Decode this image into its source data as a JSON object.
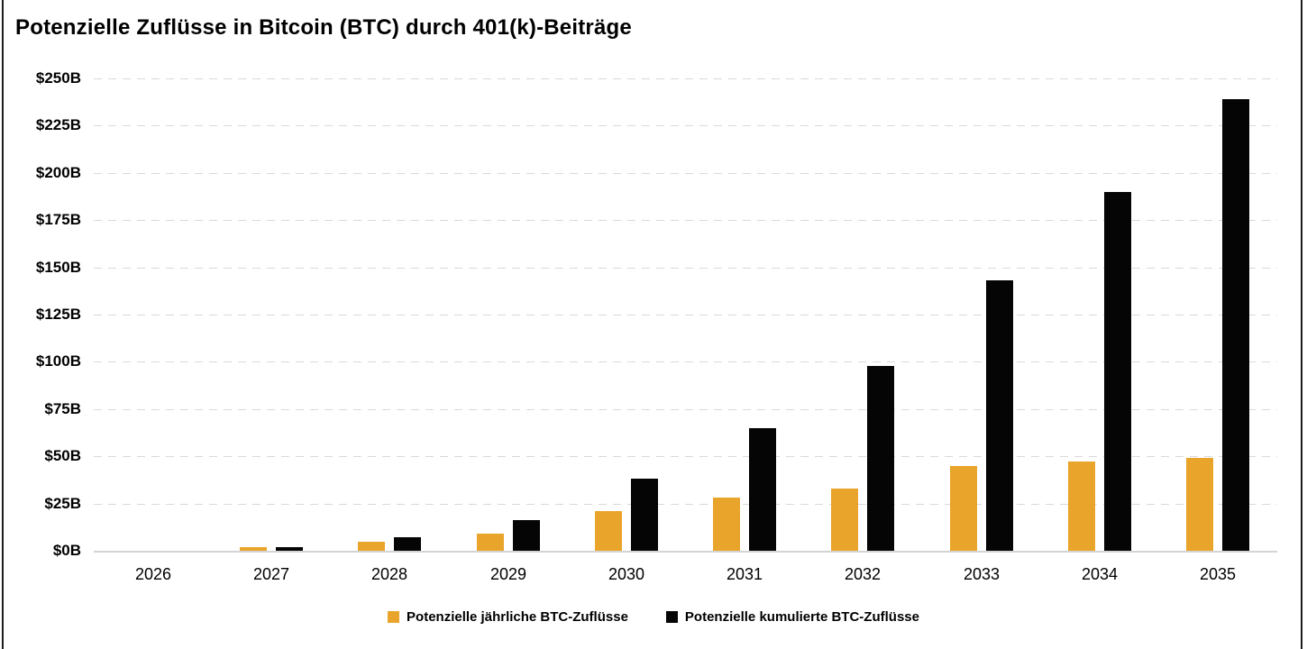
{
  "title": "Potenzielle Zuflüsse in Bitcoin (BTC) durch 401(k)-Beiträge",
  "chart_data": {
    "type": "bar",
    "title": "Potenzielle Zuflüsse in Bitcoin (BTC) durch 401(k)-Beiträge",
    "categories": [
      "2026",
      "2027",
      "2028",
      "2029",
      "2030",
      "2031",
      "2032",
      "2033",
      "2034",
      "2035"
    ],
    "series": [
      {
        "name": "Potenzielle jährliche BTC-Zuflüsse",
        "color": "#E9A52B",
        "values": [
          0,
          2,
          5,
          9,
          21,
          28,
          33,
          45,
          47,
          49
        ]
      },
      {
        "name": "Potenzielle kumulierte BTC-Zuflüsse",
        "color": "#050505",
        "values": [
          0,
          2,
          7,
          16,
          38,
          65,
          98,
          143,
          190,
          239
        ]
      }
    ],
    "y_axis": {
      "tick_labels": [
        "$0B",
        "$25B",
        "$50B",
        "$75B",
        "$100B",
        "$125B",
        "$150B",
        "$175B",
        "$200B",
        "$225B",
        "$250B"
      ],
      "tick_values": [
        0,
        25,
        50,
        75,
        100,
        125,
        150,
        175,
        200,
        225,
        250
      ],
      "min": 0,
      "max": 250
    },
    "xlabel": "",
    "ylabel": "",
    "grid": "dashed-horizontal",
    "legend_position": "bottom-center"
  },
  "colors": {
    "annual_bar": "#E9A52B",
    "cumulative_bar": "#050505",
    "gridline": "#D9D9D9",
    "axis_line": "#D4D4D4",
    "text": "#000000",
    "background": "#FFFFFF",
    "frame_border": "#1C1C1C"
  }
}
